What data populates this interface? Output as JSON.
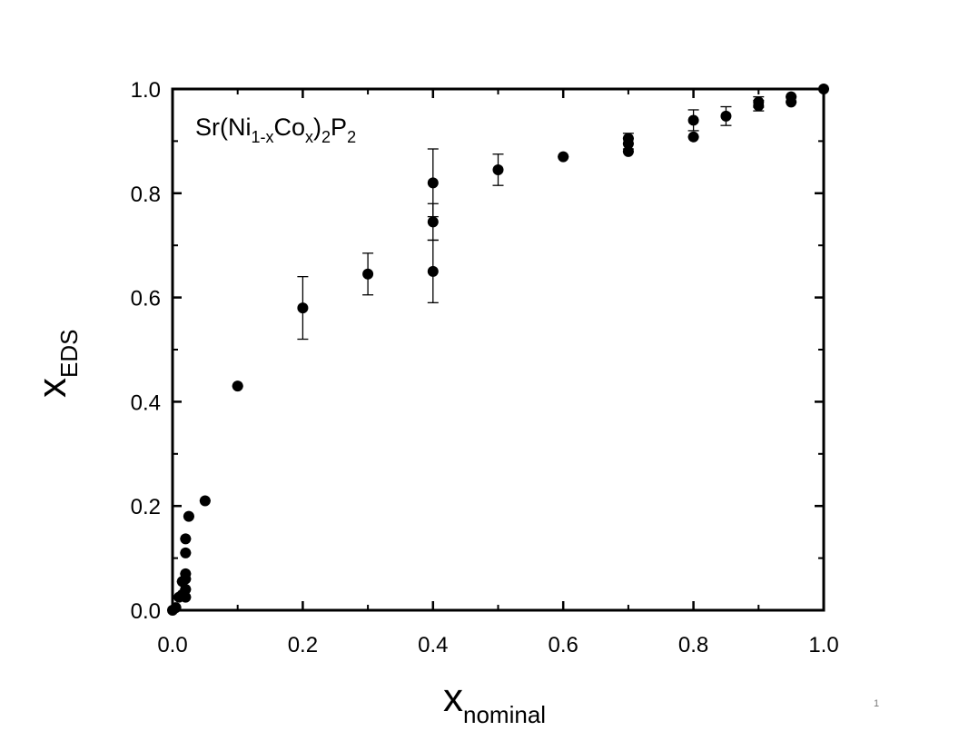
{
  "chart_data": {
    "type": "scatter",
    "xlabel": "x",
    "xlabel_sub": "nominal",
    "ylabel": "x",
    "ylabel_sub": "EDS",
    "xlim": [
      0,
      1
    ],
    "ylim": [
      0,
      1
    ],
    "x_ticks": [
      "0.0",
      "0.2",
      "0.4",
      "0.6",
      "0.8",
      "1.0"
    ],
    "y_ticks": [
      "0.0",
      "0.2",
      "0.4",
      "0.6",
      "0.8",
      "1.0"
    ],
    "grid": false,
    "annotation": {
      "parts": [
        {
          "text": "Sr(Ni",
          "sub": false
        },
        {
          "text": "1-x",
          "sub": true
        },
        {
          "text": "Co",
          "sub": false
        },
        {
          "text": "x",
          "sub": true
        },
        {
          "text": ")",
          "sub": false
        },
        {
          "text": "2",
          "sub": true
        },
        {
          "text": "P",
          "sub": false
        },
        {
          "text": "2",
          "sub": true
        }
      ]
    },
    "marker_color": "#000000",
    "points": [
      {
        "x": 0.0,
        "y": 0.0,
        "err": 0.004
      },
      {
        "x": 0.005,
        "y": 0.005,
        "err": 0.004
      },
      {
        "x": 0.01,
        "y": 0.025,
        "err": 0.005
      },
      {
        "x": 0.015,
        "y": 0.03,
        "err": 0.006
      },
      {
        "x": 0.015,
        "y": 0.055,
        "err": 0.006
      },
      {
        "x": 0.02,
        "y": 0.025,
        "err": 0.006
      },
      {
        "x": 0.02,
        "y": 0.04,
        "err": 0.006
      },
      {
        "x": 0.02,
        "y": 0.06,
        "err": 0.006
      },
      {
        "x": 0.02,
        "y": 0.07,
        "err": 0.006
      },
      {
        "x": 0.02,
        "y": 0.11,
        "err": 0.008
      },
      {
        "x": 0.02,
        "y": 0.137,
        "err": 0.006
      },
      {
        "x": 0.025,
        "y": 0.18,
        "err": 0.005
      },
      {
        "x": 0.05,
        "y": 0.21,
        "err": 0.006
      },
      {
        "x": 0.1,
        "y": 0.43,
        "err": 0.008
      },
      {
        "x": 0.2,
        "y": 0.58,
        "err": 0.06
      },
      {
        "x": 0.3,
        "y": 0.645,
        "err": 0.04
      },
      {
        "x": 0.4,
        "y": 0.65,
        "err": 0.06
      },
      {
        "x": 0.4,
        "y": 0.745,
        "err": 0.035
      },
      {
        "x": 0.4,
        "y": 0.82,
        "err": 0.065
      },
      {
        "x": 0.5,
        "y": 0.845,
        "err": 0.03
      },
      {
        "x": 0.6,
        "y": 0.87,
        "err": 0.008
      },
      {
        "x": 0.7,
        "y": 0.88,
        "err": 0.008
      },
      {
        "x": 0.7,
        "y": 0.895,
        "err": 0.01
      },
      {
        "x": 0.7,
        "y": 0.905,
        "err": 0.01
      },
      {
        "x": 0.8,
        "y": 0.908,
        "err": 0.006
      },
      {
        "x": 0.8,
        "y": 0.94,
        "err": 0.02
      },
      {
        "x": 0.85,
        "y": 0.948,
        "err": 0.018
      },
      {
        "x": 0.9,
        "y": 0.968,
        "err": 0.01
      },
      {
        "x": 0.9,
        "y": 0.975,
        "err": 0.01
      },
      {
        "x": 0.95,
        "y": 0.975,
        "err": 0.006
      },
      {
        "x": 0.95,
        "y": 0.985,
        "err": 0.006
      },
      {
        "x": 1.0,
        "y": 1.0,
        "err": 0.004
      }
    ]
  },
  "page_number": "1"
}
